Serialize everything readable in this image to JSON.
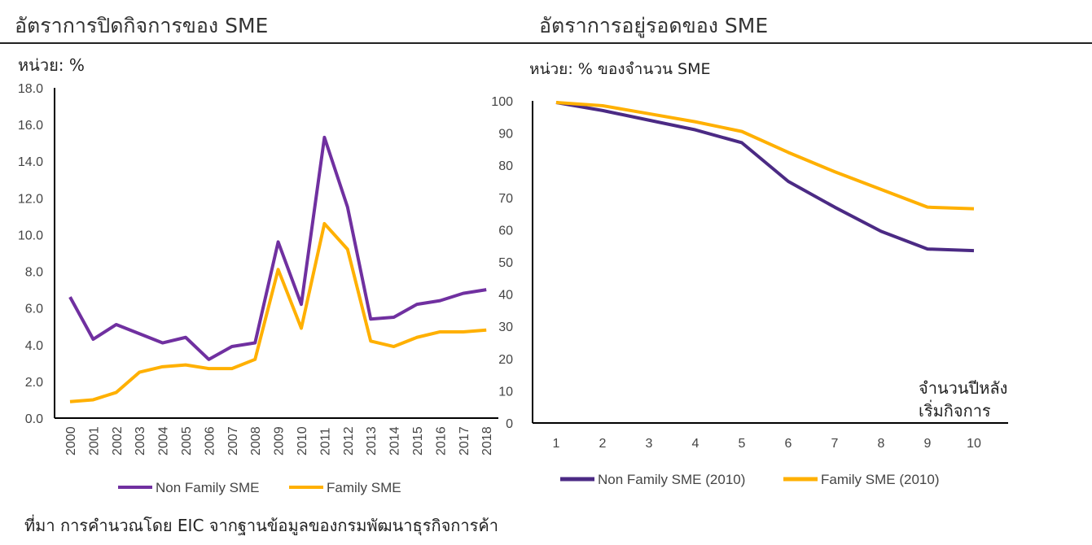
{
  "source": "ที่มา การคำนวณโดย EIC จากฐานข้อมูลของกรมพัฒนาธุรกิจการค้า",
  "colors": {
    "non_family": "#7030a0",
    "non_family_survival": "#4b2a84",
    "family": "#ffb000"
  },
  "chart_data": [
    {
      "type": "line",
      "title": "อัตราการปิดกิจการของ SME",
      "unit_label": "หน่วย: %",
      "categories": [
        "2000",
        "2001",
        "2002",
        "2003",
        "2004",
        "2005",
        "2006",
        "2007",
        "2008",
        "2009",
        "2010",
        "2011",
        "2012",
        "2013",
        "2014",
        "2015",
        "2016",
        "2017",
        "2018"
      ],
      "yticks": [
        "0.0",
        "2.0",
        "4.0",
        "6.0",
        "8.0",
        "10.0",
        "12.0",
        "14.0",
        "16.0",
        "18.0"
      ],
      "ylim": [
        0,
        18
      ],
      "legend": "bottom",
      "grid": false,
      "series": [
        {
          "name": "Non Family SME",
          "values": [
            6.6,
            4.3,
            5.1,
            4.6,
            4.1,
            4.4,
            3.2,
            3.9,
            4.1,
            9.6,
            6.2,
            15.3,
            11.5,
            5.4,
            5.5,
            6.2,
            6.4,
            6.8,
            7.0
          ]
        },
        {
          "name": "Family SME",
          "values": [
            0.9,
            1.0,
            1.4,
            2.5,
            2.8,
            2.9,
            2.7,
            2.7,
            3.2,
            8.1,
            4.9,
            10.6,
            9.2,
            4.2,
            3.9,
            4.4,
            4.7,
            4.7,
            4.8
          ]
        }
      ]
    },
    {
      "type": "line",
      "title": "อัตราการอยู่รอดของ SME",
      "unit_label": "หน่วย: % ของจำนวน SME",
      "xlabel": "จำนวนปีหลัง เริ่มกิจการ",
      "xlabel_lines": [
        "จำนวนปีหลัง",
        "เริ่มกิจการ"
      ],
      "categories": [
        "1",
        "2",
        "3",
        "4",
        "5",
        "6",
        "7",
        "8",
        "9",
        "10"
      ],
      "yticks": [
        "0",
        "10",
        "20",
        "30",
        "40",
        "50",
        "60",
        "70",
        "80",
        "90",
        "100"
      ],
      "ylim": [
        0,
        100
      ],
      "legend": "bottom",
      "grid": false,
      "series": [
        {
          "name": "Non Family SME (2010)",
          "values": [
            99.5,
            97,
            94,
            91,
            87,
            75,
            67,
            59.5,
            54,
            53.5
          ]
        },
        {
          "name": "Family SME (2010)",
          "values": [
            99.5,
            98.5,
            96,
            93.5,
            90.5,
            84,
            78,
            72.5,
            67,
            66.5
          ]
        }
      ]
    }
  ]
}
